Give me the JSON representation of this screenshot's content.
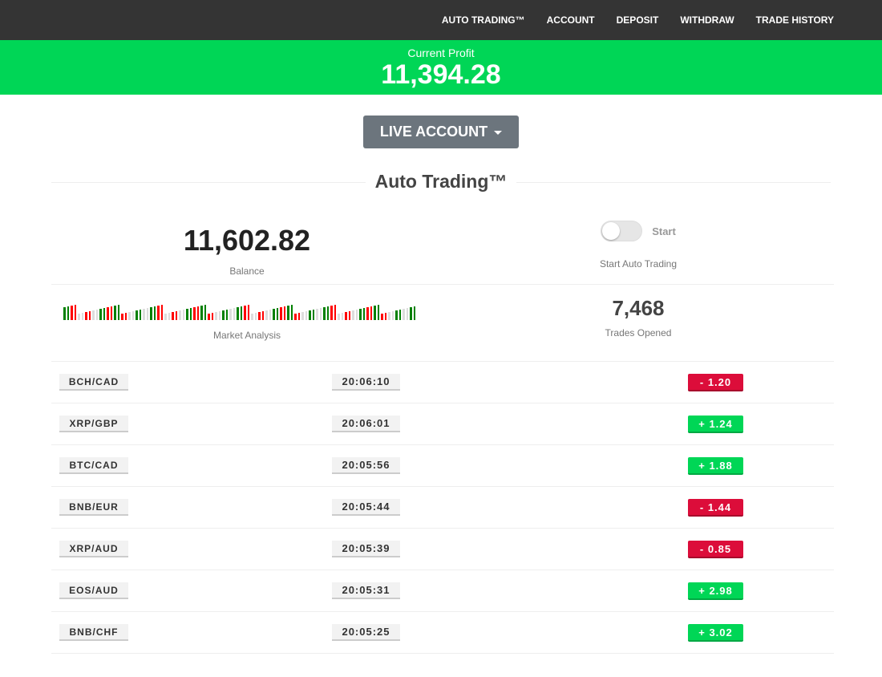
{
  "nav": [
    "AUTO TRADING™",
    "ACCOUNT",
    "DEPOSIT",
    "WITHDRAW",
    "TRADE HISTORY"
  ],
  "profit": {
    "label": "Current Profit",
    "value": "11,394.28"
  },
  "account_button": "LIVE ACCOUNT",
  "section_title": "Auto Trading™",
  "balance": {
    "value": "11,602.82",
    "label": "Balance"
  },
  "auto": {
    "toggle_label": "Start",
    "label": "Start Auto Trading",
    "enabled": false
  },
  "market": {
    "label": "Market Analysis"
  },
  "trades": {
    "value": "7,468",
    "label": "Trades Opened"
  },
  "colors": {
    "positive": "#00d656",
    "negative": "#dc0d3a",
    "nav": "#343434"
  },
  "rows": [
    {
      "pair": "BCH/CAD",
      "time": "20:06:10",
      "amount": "- 1.20",
      "dir": "neg"
    },
    {
      "pair": "XRP/GBP",
      "time": "20:06:01",
      "amount": "+ 1.24",
      "dir": "pos"
    },
    {
      "pair": "BTC/CAD",
      "time": "20:05:56",
      "amount": "+ 1.88",
      "dir": "pos"
    },
    {
      "pair": "BNB/EUR",
      "time": "20:05:44",
      "amount": "- 1.44",
      "dir": "neg"
    },
    {
      "pair": "XRP/AUD",
      "time": "20:05:39",
      "amount": "- 0.85",
      "dir": "neg"
    },
    {
      "pair": "EOS/AUD",
      "time": "20:05:31",
      "amount": "+ 2.98",
      "dir": "pos"
    },
    {
      "pair": "BNB/CHF",
      "time": "20:05:25",
      "amount": "+ 3.02",
      "dir": "pos"
    }
  ]
}
